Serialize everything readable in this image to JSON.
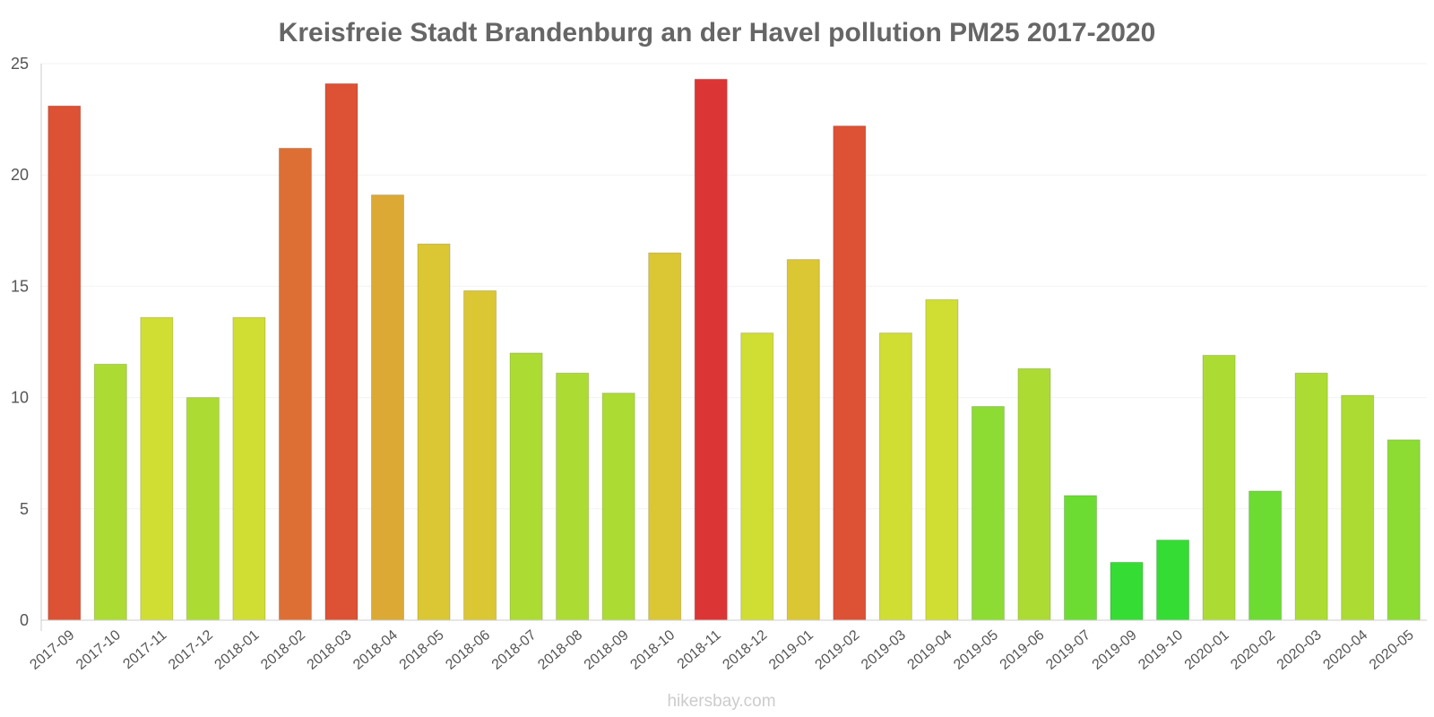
{
  "chart_data": {
    "type": "bar",
    "title": "Kreisfreie Stadt Brandenburg an der Havel pollution PM25 2017-2020",
    "xlabel": "",
    "ylabel": "",
    "ylim": [
      0,
      25
    ],
    "yticks": [
      0,
      5,
      10,
      15,
      20,
      25
    ],
    "grid": true,
    "categories": [
      "2017-09",
      "2017-10",
      "2017-11",
      "2017-12",
      "2018-01",
      "2018-02",
      "2018-03",
      "2018-04",
      "2018-05",
      "2018-06",
      "2018-07",
      "2018-08",
      "2018-09",
      "2018-10",
      "2018-11",
      "2018-12",
      "2019-01",
      "2019-02",
      "2019-03",
      "2019-04",
      "2019-05",
      "2019-06",
      "2019-07",
      "2019-09",
      "2019-10",
      "2020-01",
      "2020-02",
      "2020-03",
      "2020-04",
      "2020-05"
    ],
    "values": [
      23.1,
      11.5,
      13.6,
      10.0,
      13.6,
      21.2,
      24.1,
      19.1,
      16.9,
      14.8,
      12.0,
      11.1,
      10.2,
      16.5,
      24.3,
      12.9,
      16.2,
      22.2,
      12.9,
      14.4,
      9.6,
      11.3,
      5.6,
      2.6,
      3.6,
      11.9,
      5.8,
      11.1,
      10.1,
      8.1
    ],
    "colors": [
      "#dd5135",
      "#acdc33",
      "#d0dd33",
      "#acdc33",
      "#d0dd33",
      "#dd6f35",
      "#dd5135",
      "#dca934",
      "#dbc634",
      "#dbc634",
      "#acdc33",
      "#acdc33",
      "#acdc33",
      "#dbc634",
      "#dc3535",
      "#d0dd33",
      "#dbc634",
      "#dd5135",
      "#d0dd33",
      "#d0dd33",
      "#8cdc33",
      "#acdc33",
      "#6cdc33",
      "#35dc34",
      "#35dc34",
      "#acdc33",
      "#6cdc33",
      "#acdc33",
      "#acdc33",
      "#8cdc33"
    ],
    "credit": "hikersbay.com"
  }
}
